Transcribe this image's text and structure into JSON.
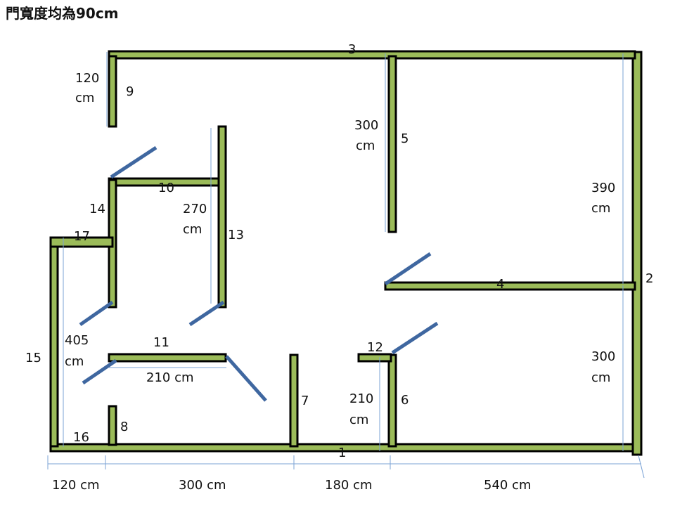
{
  "title": "門寬度均為90cm",
  "colors": {
    "wall": "#9bbb59",
    "wall_outline": "#000000",
    "door": "#3f67a0",
    "dimension_line": "#7ba3d6"
  },
  "walls": {
    "w1": "1",
    "w2": "2",
    "w3": "3",
    "w4": "4",
    "w5": "5",
    "w6": "6",
    "w7": "7",
    "w8": "8",
    "w9": "9",
    "w10": "10",
    "w11": "11",
    "w12": "12",
    "w13": "13",
    "w14": "14",
    "w15": "15",
    "w16": "16",
    "w17": "17"
  },
  "dimensions": {
    "d120_top": [
      "120",
      "cm"
    ],
    "d300_5": [
      "300",
      "cm"
    ],
    "d390": [
      "390",
      "cm"
    ],
    "d270": [
      "270",
      "cm"
    ],
    "d405": [
      "405",
      "cm"
    ],
    "d300_right": [
      "300",
      "cm"
    ],
    "d210_v": [
      "210",
      "cm"
    ],
    "d210_h": "210 cm",
    "bottom_120": "120 cm",
    "bottom_300": "300 cm",
    "bottom_180": "180 cm",
    "bottom_540": "540 cm"
  }
}
